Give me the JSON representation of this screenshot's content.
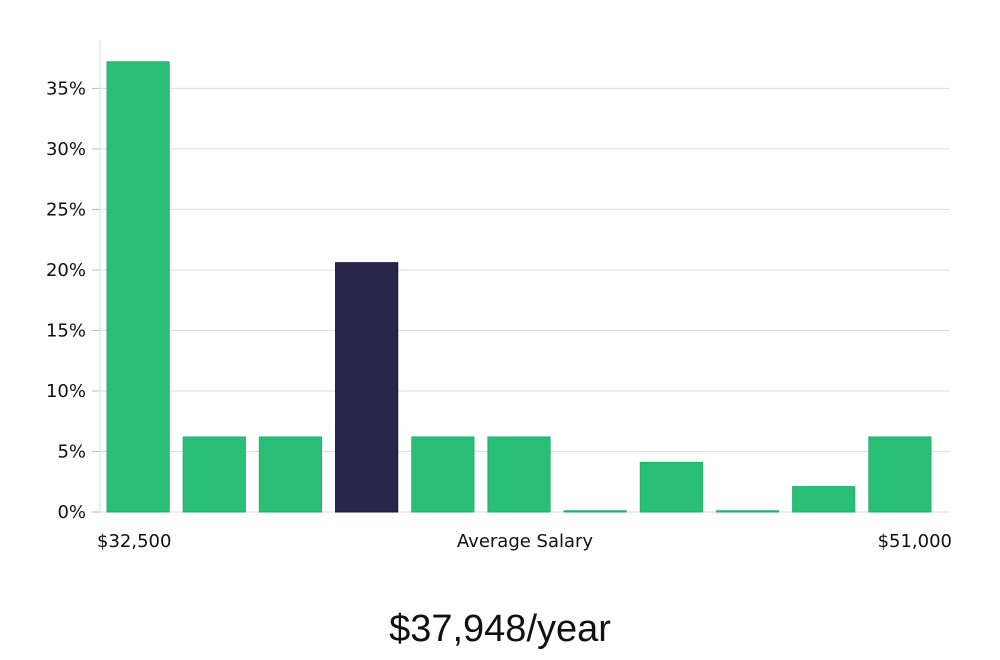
{
  "chart_data": {
    "type": "bar",
    "xlabel": "Average Salary",
    "x_range_labels": {
      "min": "$32,500",
      "max": "$51,000"
    },
    "y_ticks": [
      "0%",
      "5%",
      "10%",
      "15%",
      "20%",
      "25%",
      "30%",
      "35%"
    ],
    "ylim": [
      0,
      39
    ],
    "grid": true,
    "values": [
      37.2,
      6.2,
      6.2,
      20.6,
      6.2,
      6.2,
      0.1,
      4.1,
      0.1,
      2.1,
      6.2
    ],
    "highlight_index": 3,
    "colors": {
      "bar": "#2abf77",
      "highlight": "#28264a",
      "grid": "#dddddd"
    }
  },
  "salary": {
    "headline": "$37,948/year"
  }
}
